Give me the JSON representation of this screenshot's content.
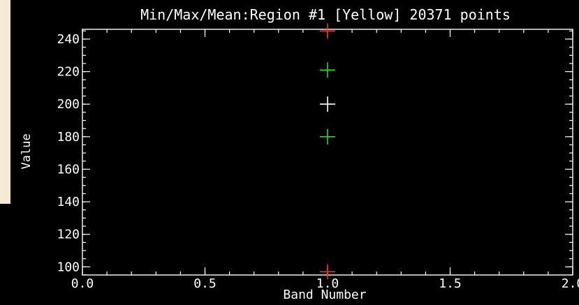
{
  "chart_data": {
    "type": "scatter",
    "title": "Min/Max/Mean:Region #1 [Yellow] 20371 points",
    "xlabel": "Band Number",
    "ylabel": "Value",
    "xlim": [
      0.0,
      2.0
    ],
    "ylim": [
      95,
      246
    ],
    "x_ticks": [
      {
        "value": 0.0,
        "label": "0.0"
      },
      {
        "value": 0.5,
        "label": "0.5"
      },
      {
        "value": 1.0,
        "label": "1.0"
      },
      {
        "value": 1.5,
        "label": "1.5"
      },
      {
        "value": 2.0,
        "label": "2.0"
      }
    ],
    "y_ticks": [
      {
        "value": 100,
        "label": "100"
      },
      {
        "value": 120,
        "label": "120"
      },
      {
        "value": 140,
        "label": "140"
      },
      {
        "value": 160,
        "label": "160"
      },
      {
        "value": 180,
        "label": "180"
      },
      {
        "value": 200,
        "label": "200"
      },
      {
        "value": 220,
        "label": "220"
      },
      {
        "value": 240,
        "label": "240"
      }
    ],
    "x_minor_step": 0.1,
    "y_minor_step": 5,
    "grid": false,
    "series": [
      {
        "role": "max",
        "color": "#ff2a2a",
        "points": [
          {
            "x": 1.0,
            "y": 245
          }
        ]
      },
      {
        "role": "mean + stdev",
        "color": "#22dd22",
        "points": [
          {
            "x": 1.0,
            "y": 221
          }
        ]
      },
      {
        "role": "mean",
        "color": "#ffffff",
        "points": [
          {
            "x": 1.0,
            "y": 200
          }
        ]
      },
      {
        "role": "mean - stdev",
        "color": "#22dd22",
        "points": [
          {
            "x": 1.0,
            "y": 180
          }
        ]
      },
      {
        "role": "min",
        "color": "#ff2a2a",
        "points": [
          {
            "x": 1.0,
            "y": 97
          }
        ]
      }
    ]
  },
  "colors": {
    "window_background": "#f5ead6",
    "plot_background": "#000000",
    "axis": "#ffffff"
  }
}
